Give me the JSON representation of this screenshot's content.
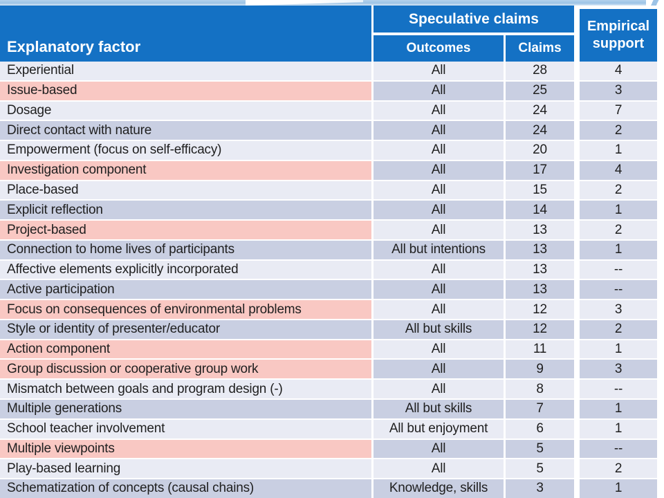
{
  "slide": {
    "type": "presentation-table-slide",
    "colors": {
      "header_blue": "#1471c4",
      "row_light": "#e9ebf4",
      "row_dark": "#c9cfe2",
      "highlight_pink": "#f9c8c3",
      "top_band_blue": "#9cc3e6",
      "header_text": "#ffffff",
      "body_text": "#1f1f1f"
    }
  },
  "table": {
    "header": {
      "factor": "Explanatory factor",
      "speculative": "Speculative claims",
      "outcomes": "Outcomes",
      "claims": "Claims",
      "empirical": "Empirical support"
    },
    "rows": [
      {
        "factor": "Experiential",
        "outcomes": "All",
        "claims": "28",
        "empirical": "4",
        "highlight": false
      },
      {
        "factor": "Issue-based",
        "outcomes": "All",
        "claims": "25",
        "empirical": "3",
        "highlight": true
      },
      {
        "factor": "Dosage",
        "outcomes": "All",
        "claims": "24",
        "empirical": "7",
        "highlight": false
      },
      {
        "factor": "Direct contact with nature",
        "outcomes": "All",
        "claims": "24",
        "empirical": "2",
        "highlight": false
      },
      {
        "factor": "Empowerment (focus on self-efficacy)",
        "outcomes": "All",
        "claims": "20",
        "empirical": "1",
        "highlight": false
      },
      {
        "factor": "Investigation component",
        "outcomes": "All",
        "claims": "17",
        "empirical": "4",
        "highlight": true
      },
      {
        "factor": "Place-based",
        "outcomes": "All",
        "claims": "15",
        "empirical": "2",
        "highlight": false
      },
      {
        "factor": "Explicit reflection",
        "outcomes": "All",
        "claims": "14",
        "empirical": "1",
        "highlight": false
      },
      {
        "factor": "Project-based",
        "outcomes": "All",
        "claims": "13",
        "empirical": "2",
        "highlight": true
      },
      {
        "factor": "Connection to home lives of participants",
        "outcomes": "All but intentions",
        "claims": "13",
        "empirical": "1",
        "highlight": false
      },
      {
        "factor": "Affective elements explicitly incorporated",
        "outcomes": "All",
        "claims": "13",
        "empirical": "--",
        "highlight": false
      },
      {
        "factor": "Active participation",
        "outcomes": "All",
        "claims": "13",
        "empirical": "--",
        "highlight": false
      },
      {
        "factor": "Focus on consequences of environmental problems",
        "outcomes": "All",
        "claims": "12",
        "empirical": "3",
        "highlight": true
      },
      {
        "factor": "Style or identity of presenter/educator",
        "outcomes": "All but skills",
        "claims": "12",
        "empirical": "2",
        "highlight": false
      },
      {
        "factor": "Action component",
        "outcomes": "All",
        "claims": "11",
        "empirical": "1",
        "highlight": true
      },
      {
        "factor": "Group discussion or cooperative group work",
        "outcomes": "All",
        "claims": "9",
        "empirical": "3",
        "highlight": true
      },
      {
        "factor": "Mismatch between goals and program design (-)",
        "outcomes": "All",
        "claims": "8",
        "empirical": "--",
        "highlight": false
      },
      {
        "factor": "Multiple generations",
        "outcomes": "All but skills",
        "claims": "7",
        "empirical": "1",
        "highlight": false
      },
      {
        "factor": "School teacher involvement",
        "outcomes": "All but enjoyment",
        "claims": "6",
        "empirical": "1",
        "highlight": false
      },
      {
        "factor": "Multiple viewpoints",
        "outcomes": "All",
        "claims": "5",
        "empirical": "--",
        "highlight": true
      },
      {
        "factor": "Play-based learning",
        "outcomes": "All",
        "claims": "5",
        "empirical": "2",
        "highlight": false
      },
      {
        "factor": "Schematization of concepts (causal chains)",
        "outcomes": "Knowledge, skills",
        "claims": "3",
        "empirical": "1",
        "highlight": false
      }
    ]
  },
  "chart_data": {
    "type": "table",
    "title": "",
    "columns": [
      "Explanatory factor",
      "Speculative claims - Outcomes",
      "Speculative claims - Claims",
      "Empirical support"
    ],
    "rows": [
      [
        "Experiential",
        "All",
        28,
        4
      ],
      [
        "Issue-based",
        "All",
        25,
        3
      ],
      [
        "Dosage",
        "All",
        24,
        7
      ],
      [
        "Direct contact with nature",
        "All",
        24,
        2
      ],
      [
        "Empowerment (focus on self-efficacy)",
        "All",
        20,
        1
      ],
      [
        "Investigation component",
        "All",
        17,
        4
      ],
      [
        "Place-based",
        "All",
        15,
        2
      ],
      [
        "Explicit reflection",
        "All",
        14,
        1
      ],
      [
        "Project-based",
        "All",
        13,
        2
      ],
      [
        "Connection to home lives of participants",
        "All but intentions",
        13,
        1
      ],
      [
        "Affective elements explicitly incorporated",
        "All",
        13,
        null
      ],
      [
        "Active participation",
        "All",
        13,
        null
      ],
      [
        "Focus on consequences of environmental problems",
        "All",
        12,
        3
      ],
      [
        "Style or identity of presenter/educator",
        "All but skills",
        12,
        2
      ],
      [
        "Action component",
        "All",
        11,
        1
      ],
      [
        "Group discussion or cooperative group work",
        "All",
        9,
        3
      ],
      [
        "Mismatch between goals and program design (-)",
        "All",
        8,
        null
      ],
      [
        "Multiple generations",
        "All but skills",
        7,
        1
      ],
      [
        "School teacher involvement",
        "All but enjoyment",
        6,
        1
      ],
      [
        "Multiple viewpoints",
        "All",
        5,
        null
      ],
      [
        "Play-based learning",
        "All",
        5,
        2
      ],
      [
        "Schematization of concepts (causal chains)",
        "Knowledge, skills",
        3,
        1
      ]
    ]
  }
}
